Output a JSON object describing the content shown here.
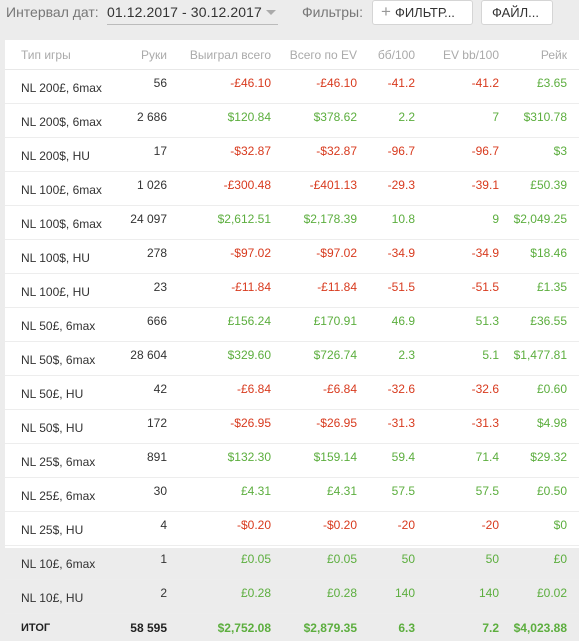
{
  "toolbar": {
    "interval_label": "Интервал дат:",
    "date_range": "01.12.2017 - 30.12.2017",
    "filters_label": "Фильтры:",
    "filter_button": "ФИЛЬТР...",
    "file_button": "ФАЙЛ..."
  },
  "colors": {
    "positive": "#5cae3e",
    "negative": "#d83a1e",
    "neutral": "#333333"
  },
  "table": {
    "columns": [
      "Тип игры",
      "Руки",
      "Выиграл всего",
      "Всего по EV",
      "бб/100",
      "EV bb/100",
      "Рейк"
    ],
    "rows": [
      [
        "NL 200£, 6max",
        "56",
        "-£46.10",
        "-£46.10",
        "-41.2",
        "-41.2",
        "£3.65"
      ],
      [
        "NL 200$, 6max",
        "2 686",
        "$120.84",
        "$378.62",
        "2.2",
        "7",
        "$310.78"
      ],
      [
        "NL 200$, HU",
        "17",
        "-$32.87",
        "-$32.87",
        "-96.7",
        "-96.7",
        "$3"
      ],
      [
        "NL 100£, 6max",
        "1 026",
        "-£300.48",
        "-£401.13",
        "-29.3",
        "-39.1",
        "£50.39"
      ],
      [
        "NL 100$, 6max",
        "24 097",
        "$2,612.51",
        "$2,178.39",
        "10.8",
        "9",
        "$2,049.25"
      ],
      [
        "NL 100$, HU",
        "278",
        "-$97.02",
        "-$97.02",
        "-34.9",
        "-34.9",
        "$18.46"
      ],
      [
        "NL 100£, HU",
        "23",
        "-£11.84",
        "-£11.84",
        "-51.5",
        "-51.5",
        "£1.35"
      ],
      [
        "NL 50£, 6max",
        "666",
        "£156.24",
        "£170.91",
        "46.9",
        "51.3",
        "£36.55"
      ],
      [
        "NL 50$, 6max",
        "28 604",
        "$329.60",
        "$726.74",
        "2.3",
        "5.1",
        "$1,477.81"
      ],
      [
        "NL 50£, HU",
        "42",
        "-£6.84",
        "-£6.84",
        "-32.6",
        "-32.6",
        "£0.60"
      ],
      [
        "NL 50$, HU",
        "172",
        "-$26.95",
        "-$26.95",
        "-31.3",
        "-31.3",
        "$4.98"
      ],
      [
        "NL 25$, 6max",
        "891",
        "$132.30",
        "$159.14",
        "59.4",
        "71.4",
        "$29.32"
      ],
      [
        "NL 25£, 6max",
        "30",
        "£4.31",
        "£4.31",
        "57.5",
        "57.5",
        "£0.50"
      ],
      [
        "NL 25$, HU",
        "4",
        "-$0.20",
        "-$0.20",
        "-20",
        "-20",
        "$0"
      ],
      [
        "NL 10£, 6max",
        "1",
        "£0.05",
        "£0.05",
        "50",
        "50",
        "£0"
      ],
      [
        "NL 10£, HU",
        "2",
        "£0.28",
        "£0.28",
        "140",
        "140",
        "£0.02"
      ]
    ],
    "total": [
      "ИТОГ",
      "58 595",
      "$2,752.08",
      "$2,879.35",
      "6.3",
      "7.2",
      "$4,023.88"
    ]
  }
}
